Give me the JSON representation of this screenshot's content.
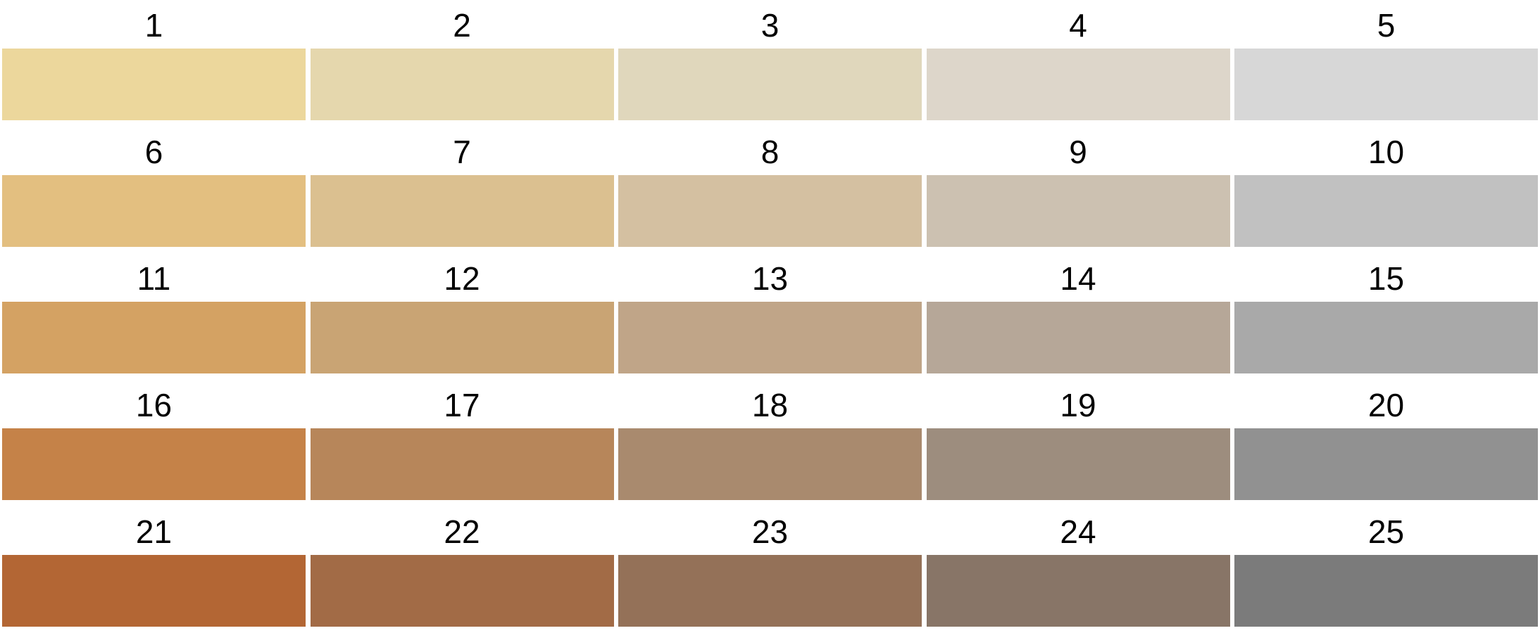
{
  "swatches": [
    {
      "label": "1",
      "color": "#ecd79c"
    },
    {
      "label": "2",
      "color": "#e5d7ad"
    },
    {
      "label": "3",
      "color": "#e0d7bc"
    },
    {
      "label": "4",
      "color": "#ddd6ca"
    },
    {
      "label": "5",
      "color": "#d7d7d7"
    },
    {
      "label": "6",
      "color": "#e3bf80"
    },
    {
      "label": "7",
      "color": "#dbc090"
    },
    {
      "label": "8",
      "color": "#d4c0a1"
    },
    {
      "label": "9",
      "color": "#ccc1b1"
    },
    {
      "label": "10",
      "color": "#c1c1c1"
    },
    {
      "label": "11",
      "color": "#d4a263"
    },
    {
      "label": "12",
      "color": "#c9a474"
    },
    {
      "label": "13",
      "color": "#c0a588"
    },
    {
      "label": "14",
      "color": "#b6a798"
    },
    {
      "label": "15",
      "color": "#a9a9a9"
    },
    {
      "label": "16",
      "color": "#c58248"
    },
    {
      "label": "17",
      "color": "#b7865a"
    },
    {
      "label": "18",
      "color": "#a98a6e"
    },
    {
      "label": "19",
      "color": "#9d8d7e"
    },
    {
      "label": "20",
      "color": "#919191"
    },
    {
      "label": "21",
      "color": "#b36634"
    },
    {
      "label": "22",
      "color": "#a26b46"
    },
    {
      "label": "23",
      "color": "#947158"
    },
    {
      "label": "24",
      "color": "#887567"
    },
    {
      "label": "25",
      "color": "#7b7b7b"
    }
  ]
}
